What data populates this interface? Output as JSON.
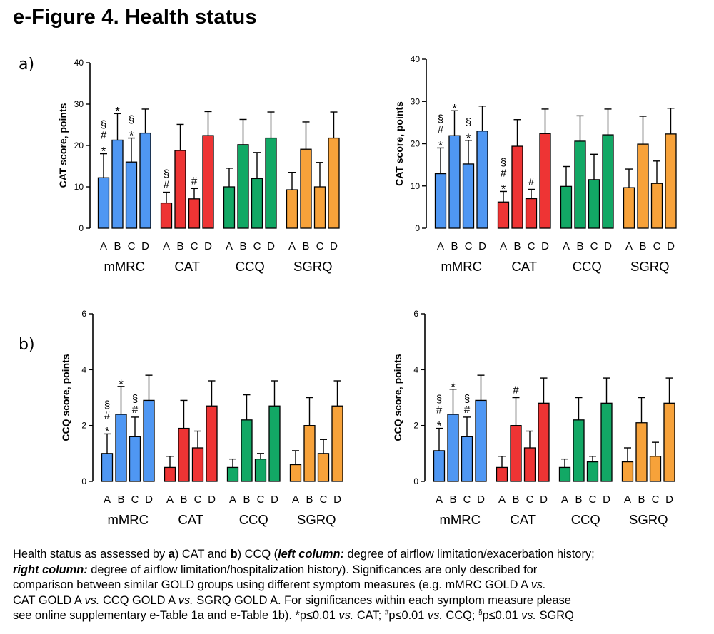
{
  "figure": {
    "title": "e-Figure 4. Health status",
    "panel_a": "a)",
    "panel_b": "b)"
  },
  "colors": {
    "mMRC": "#4F97F3",
    "CAT": "#EE3434",
    "CCQ": "#12A865",
    "SGRQ": "#F7A23A",
    "axis": "#000000"
  },
  "caption": {
    "line1_pre": "Health status as assessed by ",
    "line1_a": "a",
    "line1_mid": ") CAT and ",
    "line1_b": "b",
    "line1_mid2": ") CCQ (",
    "line1_left": "left column:",
    "line1_post": " degree of airflow limitation/exacerbation history;",
    "line2_right": "right column:",
    "line2_post": " degree of airflow limitation/hospitalization history). Significances are only described for",
    "line3": "comparison between similar GOLD groups using different symptom measures (e.g. mMRC GOLD A ",
    "line3_vs": "vs.",
    "line4_pre": "CAT GOLD A ",
    "line4_vs1": "vs.",
    "line4_mid": " CCQ GOLD A ",
    "line4_vs2": "vs.",
    "line4_post": " SGRQ GOLD A. For significances within each symptom measure please",
    "line5_pre": "see online supplementary e-Table 1a and e-Table 1b).  *p≤0.01 ",
    "line5_vs1": "vs.",
    "line5_cat": " CAT; ",
    "line5_hash": "#",
    "line5_p2": "p≤0.01 ",
    "line5_vs2": "vs.",
    "line5_ccq": " CCQ; ",
    "line5_sect": "§",
    "line5_p3": "p≤0.01 ",
    "line5_vs3": "vs.",
    "line5_sgrq": " SGRQ"
  },
  "chart_data": [
    {
      "id": "a-left",
      "type": "bar",
      "ylabel": "CAT score, points",
      "ylim": [
        0,
        40
      ],
      "yticks": [
        0,
        10,
        20,
        30,
        40
      ],
      "groups": [
        "mMRC",
        "CAT",
        "CCQ",
        "SGRQ"
      ],
      "categories": [
        "A",
        "B",
        "C",
        "D"
      ],
      "series": [
        {
          "group": "mMRC",
          "values": [
            12.2,
            21.3,
            16.0,
            23.0
          ],
          "errors": [
            5.8,
            6.4,
            5.8,
            5.8
          ],
          "marks": [
            [
              "*",
              "#",
              "§"
            ],
            [
              "*"
            ],
            [
              "*",
              "§"
            ],
            []
          ]
        },
        {
          "group": "CAT",
          "values": [
            6.1,
            18.8,
            7.1,
            22.4
          ],
          "errors": [
            2.6,
            6.3,
            2.5,
            5.8
          ],
          "marks": [
            [
              "#",
              "§"
            ],
            [],
            [
              "#"
            ],
            []
          ]
        },
        {
          "group": "CCQ",
          "values": [
            10.0,
            20.2,
            12.0,
            21.8
          ],
          "errors": [
            4.5,
            6.1,
            6.3,
            6.3
          ],
          "marks": [
            [],
            [],
            [],
            []
          ]
        },
        {
          "group": "SGRQ",
          "values": [
            9.3,
            19.1,
            10.0,
            21.8
          ],
          "errors": [
            4.2,
            6.6,
            5.9,
            6.3
          ],
          "marks": [
            [],
            [],
            [],
            []
          ]
        }
      ]
    },
    {
      "id": "a-right",
      "type": "bar",
      "ylabel": "CAT score, points",
      "ylim": [
        0,
        40
      ],
      "yticks": [
        0,
        10,
        20,
        30,
        40
      ],
      "groups": [
        "mMRC",
        "CAT",
        "CCQ",
        "SGRQ"
      ],
      "categories": [
        "A",
        "B",
        "C",
        "D"
      ],
      "series": [
        {
          "group": "mMRC",
          "values": [
            12.9,
            21.9,
            15.2,
            23.0
          ],
          "errors": [
            6.1,
            5.9,
            5.6,
            5.9
          ],
          "marks": [
            [
              "*",
              "#",
              "§"
            ],
            [
              "*"
            ],
            [
              "*",
              "§"
            ],
            []
          ]
        },
        {
          "group": "CAT",
          "values": [
            6.2,
            19.4,
            7.0,
            22.4
          ],
          "errors": [
            2.5,
            6.3,
            2.2,
            5.8
          ],
          "marks": [
            [
              "*",
              "#",
              "§"
            ],
            [],
            [
              "#"
            ],
            []
          ]
        },
        {
          "group": "CCQ",
          "values": [
            9.9,
            20.6,
            11.5,
            22.1
          ],
          "errors": [
            4.7,
            6.0,
            6.0,
            6.1
          ],
          "marks": [
            [],
            [],
            [],
            []
          ]
        },
        {
          "group": "SGRQ",
          "values": [
            9.6,
            19.9,
            10.6,
            22.3
          ],
          "errors": [
            4.4,
            6.6,
            5.3,
            6.1
          ],
          "marks": [
            [],
            [],
            [],
            []
          ]
        }
      ]
    },
    {
      "id": "b-left",
      "type": "bar",
      "ylabel": "CCQ score, points",
      "ylim": [
        0,
        6
      ],
      "yticks": [
        0,
        2,
        4,
        6
      ],
      "groups": [
        "mMRC",
        "CAT",
        "CCQ",
        "SGRQ"
      ],
      "categories": [
        "A",
        "B",
        "C",
        "D"
      ],
      "series": [
        {
          "group": "mMRC",
          "values": [
            1.0,
            2.4,
            1.6,
            2.9
          ],
          "errors": [
            0.7,
            1.0,
            0.7,
            0.9
          ],
          "marks": [
            [
              "*",
              "#",
              "§"
            ],
            [
              "*"
            ],
            [
              "#",
              "§"
            ],
            []
          ]
        },
        {
          "group": "CAT",
          "values": [
            0.5,
            1.9,
            1.2,
            2.7
          ],
          "errors": [
            0.4,
            1.0,
            0.6,
            0.9
          ],
          "marks": [
            [],
            [],
            [],
            []
          ]
        },
        {
          "group": "CCQ",
          "values": [
            0.5,
            2.2,
            0.8,
            2.7
          ],
          "errors": [
            0.3,
            0.9,
            0.2,
            0.9
          ],
          "marks": [
            [],
            [],
            [],
            []
          ]
        },
        {
          "group": "SGRQ",
          "values": [
            0.6,
            2.0,
            1.0,
            2.7
          ],
          "errors": [
            0.5,
            1.0,
            0.5,
            0.9
          ],
          "marks": [
            [],
            [],
            [],
            []
          ]
        }
      ]
    },
    {
      "id": "b-right",
      "type": "bar",
      "ylabel": "CCQ score, points",
      "ylim": [
        0,
        6
      ],
      "yticks": [
        0,
        2,
        4,
        6
      ],
      "groups": [
        "mMRC",
        "CAT",
        "CCQ",
        "SGRQ"
      ],
      "categories": [
        "A",
        "B",
        "C",
        "D"
      ],
      "series": [
        {
          "group": "mMRC",
          "values": [
            1.1,
            2.4,
            1.6,
            2.9
          ],
          "errors": [
            0.8,
            0.9,
            0.7,
            0.9
          ],
          "marks": [
            [
              "*",
              "#",
              "§"
            ],
            [
              "*"
            ],
            [
              "#",
              "§"
            ],
            []
          ]
        },
        {
          "group": "CAT",
          "values": [
            0.5,
            2.0,
            1.2,
            2.8
          ],
          "errors": [
            0.4,
            1.0,
            0.6,
            0.9
          ],
          "marks": [
            [],
            [
              "#"
            ],
            [],
            []
          ]
        },
        {
          "group": "CCQ",
          "values": [
            0.5,
            2.2,
            0.7,
            2.8
          ],
          "errors": [
            0.3,
            0.8,
            0.2,
            0.9
          ],
          "marks": [
            [],
            [],
            [],
            []
          ]
        },
        {
          "group": "SGRQ",
          "values": [
            0.7,
            2.1,
            0.9,
            2.8
          ],
          "errors": [
            0.5,
            0.9,
            0.5,
            0.9
          ],
          "marks": [
            [],
            [],
            [],
            []
          ]
        }
      ]
    }
  ]
}
